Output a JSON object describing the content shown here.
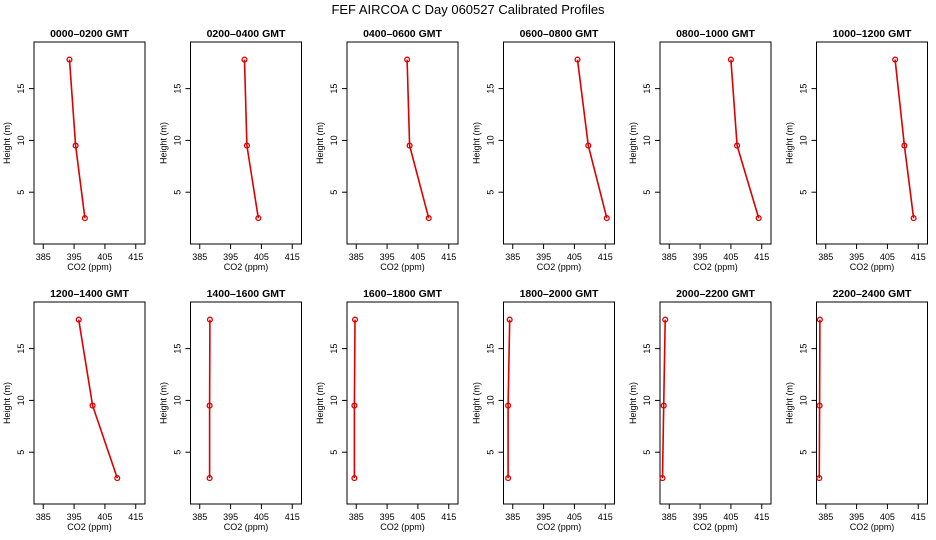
{
  "chart_data": {
    "title": "FEF AIRCOA C  Day 060527  Calibrated Profiles",
    "type": "line",
    "xlabel": "CO2 (ppm)",
    "ylabel": "Height (m)",
    "xlim": [
      382,
      418
    ],
    "ylim": [
      0,
      19.5
    ],
    "x_ticks": [
      385,
      395,
      405,
      415
    ],
    "y_ticks": [
      5,
      10,
      15
    ],
    "grid": false,
    "heights": [
      2.5,
      9.5,
      17.8
    ],
    "panels": [
      {
        "title": "0000–0200 GMT",
        "co2": [
          398.5,
          395.5,
          393.5
        ]
      },
      {
        "title": "0200–0400 GMT",
        "co2": [
          404.0,
          400.3,
          399.5
        ]
      },
      {
        "title": "0400–0600 GMT",
        "co2": [
          408.5,
          402.3,
          401.5
        ]
      },
      {
        "title": "0600–0800 GMT",
        "co2": [
          415.5,
          409.5,
          406.0
        ]
      },
      {
        "title": "0800–1000 GMT",
        "co2": [
          414.0,
          407.0,
          405.0
        ]
      },
      {
        "title": "1000–1200 GMT",
        "co2": [
          413.5,
          410.5,
          407.5
        ]
      },
      {
        "title": "1200–1400 GMT",
        "co2": [
          409.0,
          401.0,
          396.5
        ]
      },
      {
        "title": "1400–1600 GMT",
        "co2": [
          388.2,
          388.2,
          388.3
        ]
      },
      {
        "title": "1600–1800 GMT",
        "co2": [
          384.4,
          384.4,
          384.6
        ]
      },
      {
        "title": "1800–2000 GMT",
        "co2": [
          383.5,
          383.5,
          384.0
        ]
      },
      {
        "title": "2000–2200 GMT",
        "co2": [
          382.8,
          383.2,
          383.7
        ]
      },
      {
        "title": "2200–2400 GMT",
        "co2": [
          382.9,
          383.0,
          383.1
        ]
      }
    ]
  }
}
